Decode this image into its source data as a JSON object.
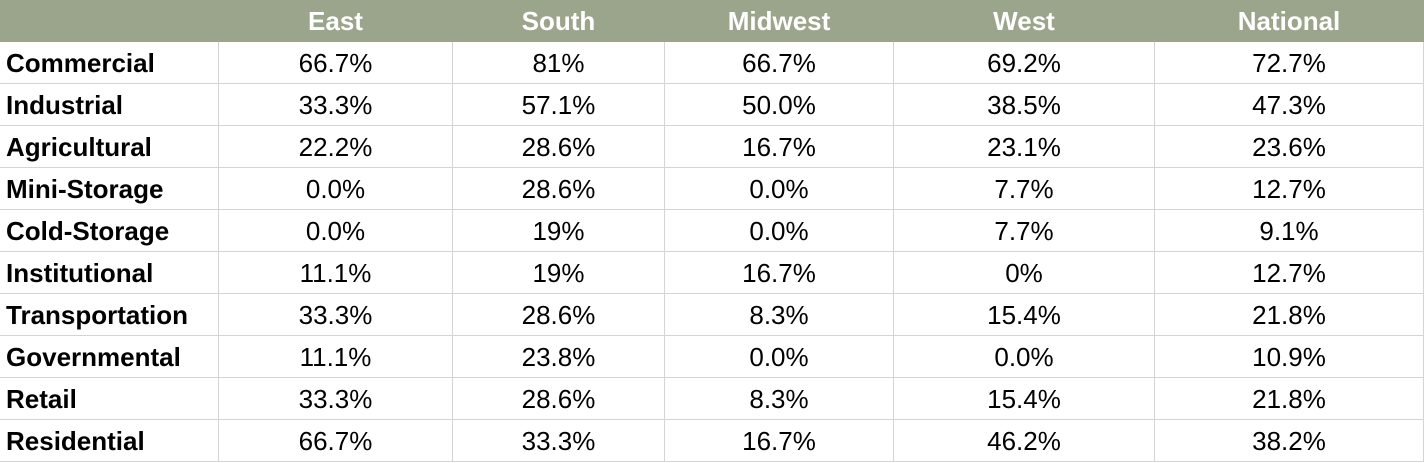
{
  "table": {
    "columns": [
      "East",
      "South",
      "Midwest",
      "West",
      "National"
    ],
    "rows": [
      {
        "label": "Commercial",
        "values": [
          "66.7%",
          "81%",
          "66.7%",
          "69.2%",
          "72.7%"
        ]
      },
      {
        "label": "Industrial",
        "values": [
          "33.3%",
          "57.1%",
          "50.0%",
          "38.5%",
          "47.3%"
        ]
      },
      {
        "label": "Agricultural",
        "values": [
          "22.2%",
          "28.6%",
          "16.7%",
          "23.1%",
          "23.6%"
        ]
      },
      {
        "label": "Mini-Storage",
        "values": [
          "0.0%",
          "28.6%",
          "0.0%",
          "7.7%",
          "12.7%"
        ]
      },
      {
        "label": "Cold-Storage",
        "values": [
          "0.0%",
          "19%",
          "0.0%",
          "7.7%",
          "9.1%"
        ]
      },
      {
        "label": "Institutional",
        "values": [
          "11.1%",
          "19%",
          "16.7%",
          "0%",
          "12.7%"
        ]
      },
      {
        "label": "Transportation",
        "values": [
          "33.3%",
          "28.6%",
          "8.3%",
          "15.4%",
          "21.8%"
        ]
      },
      {
        "label": "Governmental",
        "values": [
          "11.1%",
          "23.8%",
          "0.0%",
          "0.0%",
          "10.9%"
        ]
      },
      {
        "label": "Retail",
        "values": [
          "33.3%",
          "28.6%",
          "8.3%",
          "15.4%",
          "21.8%"
        ]
      },
      {
        "label": "Residential",
        "values": [
          "66.7%",
          "33.3%",
          "16.7%",
          "46.2%",
          "38.2%"
        ]
      }
    ]
  }
}
